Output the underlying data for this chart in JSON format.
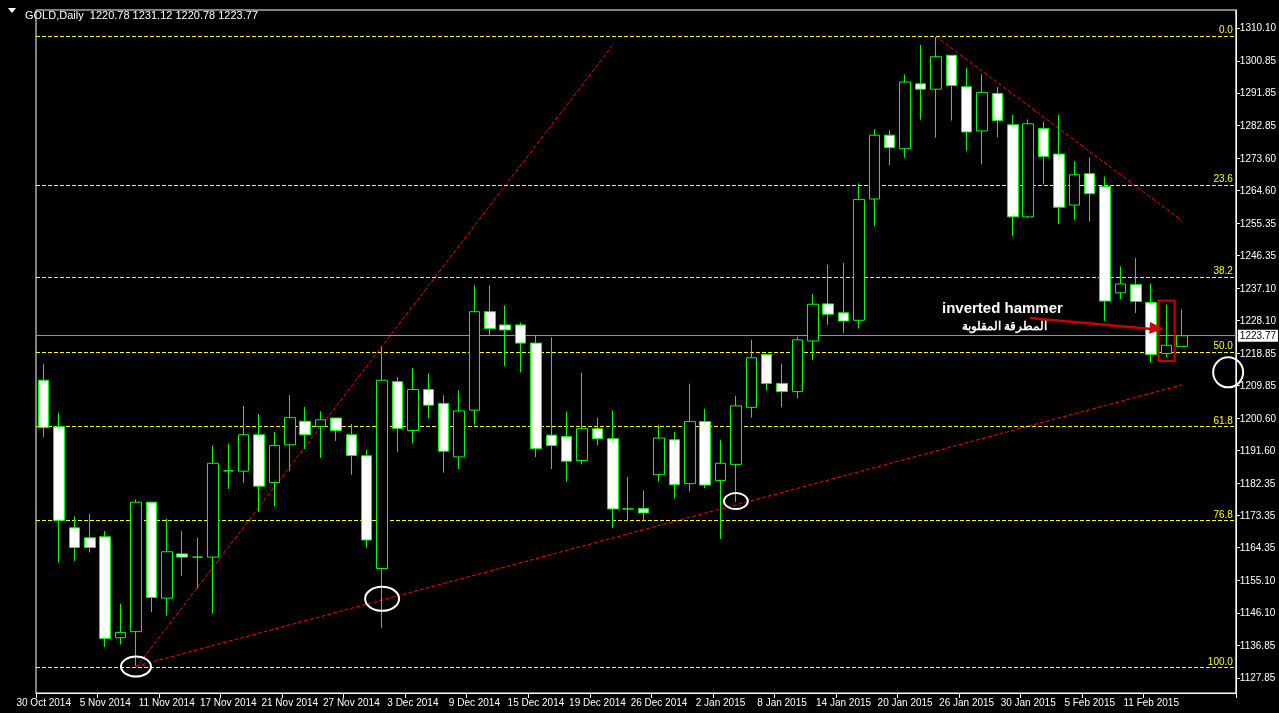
{
  "chart_data": {
    "type": "candlestick",
    "title": "GOLD,Daily  1220.78 1231.12 1220.78 1223.77",
    "categories": [
      "30 Oct 2014",
      null,
      null,
      null,
      "5 Nov 2014",
      null,
      null,
      null,
      "11 Nov 2014",
      null,
      null,
      null,
      "17 Nov 2014",
      null,
      null,
      null,
      "21 Nov 2014",
      null,
      null,
      null,
      "27 Nov 2014",
      null,
      null,
      null,
      "3 Dec 2014",
      null,
      null,
      null,
      "9 Dec 2014",
      null,
      null,
      null,
      "15 Dec 2014",
      null,
      null,
      null,
      "19 Dec 2014",
      null,
      null,
      null,
      "26 Dec 2014",
      null,
      null,
      null,
      "2 Jan 2015",
      null,
      null,
      null,
      "8 Jan 2015",
      null,
      null,
      null,
      "14 Jan 2015",
      null,
      null,
      null,
      "20 Jan 2015",
      null,
      null,
      null,
      "26 Jan 2015",
      null,
      null,
      null,
      "30 Jan 2015",
      null,
      null,
      null,
      "5 Feb 2015",
      null,
      null,
      null,
      "11 Feb 2015",
      null,
      null
    ],
    "series": [
      {
        "type": "candlestick",
        "color": "#00ff00",
        "ohlc": [
          [
            1211.3,
            1215.9,
            1195.3,
            1198.0
          ],
          [
            1198.3,
            1202.2,
            1160.2,
            1172.0
          ],
          [
            1169.9,
            1173.1,
            1160.6,
            1164.4
          ],
          [
            1167.1,
            1173.9,
            1163.0,
            1164.4
          ],
          [
            1167.4,
            1169.0,
            1136.5,
            1138.9
          ],
          [
            1139.1,
            1148.6,
            1137.2,
            1140.6
          ],
          [
            1140.8,
            1177.9,
            1131.2,
            1177.1
          ],
          [
            1177.1,
            1177.1,
            1146.3,
            1150.4
          ],
          [
            1150.2,
            1172.4,
            1145.3,
            1163.2
          ],
          [
            1162.6,
            1169.0,
            1156.4,
            1161.7
          ],
          [
            1161.7,
            1167.1,
            1152.9,
            1161.7
          ],
          [
            1161.7,
            1193.0,
            1145.9,
            1188.0
          ],
          [
            1185.9,
            1193.5,
            1180.8,
            1185.9
          ],
          [
            1185.8,
            1204.1,
            1182.5,
            1196.0
          ],
          [
            1196.0,
            1201.8,
            1174.3,
            1181.6
          ],
          [
            1182.6,
            1196.8,
            1176.0,
            1193.0
          ],
          [
            1193.2,
            1207.1,
            1185.8,
            1200.8
          ],
          [
            1199.8,
            1203.8,
            1192.0,
            1196.0
          ],
          [
            1198.3,
            1202.6,
            1189.5,
            1200.2
          ],
          [
            1200.7,
            1200.7,
            1194.3,
            1197.2
          ],
          [
            1196.0,
            1199.0,
            1184.8,
            1190.2
          ],
          [
            1190.1,
            1191.7,
            1164.4,
            1166.5
          ],
          [
            1158.5,
            1220.7,
            1141.9,
            1211.3
          ],
          [
            1210.9,
            1212.2,
            1191.2,
            1197.8
          ],
          [
            1197.2,
            1214.7,
            1193.6,
            1208.7
          ],
          [
            1208.7,
            1213.2,
            1200.6,
            1204.3
          ],
          [
            1204.8,
            1207.1,
            1185.4,
            1191.4
          ],
          [
            1189.8,
            1208.5,
            1186.4,
            1202.7
          ],
          [
            1202.9,
            1237.9,
            1198.8,
            1230.5
          ],
          [
            1230.5,
            1237.9,
            1223.9,
            1225.8
          ],
          [
            1226.8,
            1232.3,
            1215.3,
            1225.4
          ],
          [
            1226.8,
            1227.5,
            1213.5,
            1221.7
          ],
          [
            1221.7,
            1223.9,
            1189.8,
            1192.1
          ],
          [
            1195.9,
            1223.3,
            1186.4,
            1193.0
          ],
          [
            1195.5,
            1202.5,
            1182.9,
            1188.6
          ],
          [
            1188.8,
            1213.4,
            1187.7,
            1197.7
          ],
          [
            1197.7,
            1200.8,
            1193.0,
            1194.9
          ],
          [
            1194.9,
            1202.8,
            1169.9,
            1175.2
          ],
          [
            1175.2,
            1184.2,
            1171.9,
            1175.2
          ],
          [
            1175.3,
            1180.4,
            1171.9,
            1174.1
          ],
          [
            1184.8,
            1198.7,
            1182.9,
            1195.1
          ],
          [
            1194.6,
            1196.8,
            1178.2,
            1182.0
          ],
          [
            1182.3,
            1210.3,
            1180.1,
            1199.7
          ],
          [
            1199.7,
            1203.3,
            1181.0,
            1181.9
          ],
          [
            1183.2,
            1194.5,
            1166.8,
            1188.0
          ],
          [
            1187.7,
            1206.9,
            1177.2,
            1204.1
          ],
          [
            1203.7,
            1222.6,
            1200.8,
            1217.6
          ],
          [
            1218.5,
            1218.5,
            1208.4,
            1210.4
          ],
          [
            1210.4,
            1215.9,
            1203.7,
            1208.1
          ],
          [
            1208.1,
            1223.5,
            1206.2,
            1222.6
          ],
          [
            1222.3,
            1235.4,
            1217.0,
            1232.6
          ],
          [
            1232.7,
            1243.7,
            1226.8,
            1229.8
          ],
          [
            1230.2,
            1244.2,
            1224.5,
            1227.9
          ],
          [
            1228.1,
            1266.4,
            1225.8,
            1262.0
          ],
          [
            1262.1,
            1281.7,
            1254.5,
            1280.0
          ],
          [
            1280.0,
            1281.3,
            1271.6,
            1276.5
          ],
          [
            1276.2,
            1297.0,
            1273.7,
            1294.9
          ],
          [
            1294.4,
            1305.3,
            1284.3,
            1292.9
          ],
          [
            1292.9,
            1307.5,
            1279.3,
            1302.0
          ],
          [
            1302.4,
            1302.4,
            1284.1,
            1293.9
          ],
          [
            1293.6,
            1298.9,
            1275.6,
            1280.9
          ],
          [
            1281.2,
            1297.1,
            1271.8,
            1292.0
          ],
          [
            1291.7,
            1293.5,
            1279.4,
            1284.1
          ],
          [
            1282.9,
            1285.7,
            1251.6,
            1257.1
          ],
          [
            1257.1,
            1284.4,
            1256.7,
            1283.2
          ],
          [
            1281.9,
            1283.8,
            1266.2,
            1274.0
          ],
          [
            1274.7,
            1285.7,
            1255.1,
            1259.8
          ],
          [
            1260.4,
            1272.7,
            1256.3,
            1268.9
          ],
          [
            1269.2,
            1273.7,
            1255.8,
            1263.6
          ],
          [
            1265.6,
            1268.4,
            1227.9,
            1233.5
          ],
          [
            1235.8,
            1243.2,
            1234.0,
            1238.3
          ],
          [
            1238.1,
            1245.5,
            1230.2,
            1233.4
          ],
          [
            1233.1,
            1238.4,
            1216.3,
            1218.5
          ],
          [
            1218.8,
            1232.5,
            1217.8,
            1221.1
          ],
          [
            1220.78,
            1231.12,
            1220.78,
            1223.77
          ]
        ]
      },
      {
        "type": "line",
        "color": "#ff0000",
        "line_style": "dashed",
        "values": [
          null,
          null,
          null,
          null,
          null,
          null,
          1130.7,
          null,
          null,
          null,
          null,
          null,
          null,
          null,
          null,
          null,
          null,
          null,
          null,
          null,
          null,
          null,
          null,
          null,
          null,
          null,
          null,
          null,
          null,
          null,
          null,
          null,
          null,
          null,
          null,
          null,
          null,
          1305.3,
          null,
          null,
          null,
          null,
          null,
          null,
          null,
          null,
          null,
          null,
          null,
          null,
          null,
          null,
          null,
          null,
          null,
          null,
          null,
          null,
          null,
          null,
          null,
          null,
          null,
          null,
          null,
          null,
          null,
          null,
          null,
          null,
          null,
          null,
          null,
          null,
          null
        ]
      },
      {
        "type": "line",
        "color": "#ff0000",
        "line_style": "dashed",
        "values": [
          null,
          null,
          null,
          null,
          null,
          null,
          1131.1,
          null,
          null,
          null,
          null,
          null,
          null,
          null,
          null,
          null,
          null,
          null,
          null,
          null,
          null,
          null,
          null,
          null,
          null,
          null,
          null,
          null,
          null,
          null,
          null,
          null,
          null,
          null,
          null,
          null,
          null,
          null,
          null,
          null,
          null,
          null,
          null,
          null,
          null,
          null,
          null,
          null,
          null,
          null,
          null,
          null,
          null,
          null,
          null,
          null,
          null,
          null,
          null,
          null,
          null,
          null,
          null,
          null,
          null,
          null,
          null,
          null,
          null,
          null,
          null,
          null,
          null,
          null,
          1210.0
        ]
      },
      {
        "type": "line",
        "color": "#ff0000",
        "line_style": "dashed",
        "values": [
          null,
          null,
          null,
          null,
          null,
          null,
          null,
          null,
          null,
          null,
          null,
          null,
          null,
          null,
          null,
          null,
          null,
          null,
          null,
          null,
          null,
          null,
          null,
          null,
          null,
          null,
          null,
          null,
          null,
          null,
          null,
          null,
          null,
          null,
          null,
          null,
          null,
          null,
          null,
          null,
          null,
          null,
          null,
          null,
          null,
          null,
          null,
          null,
          null,
          null,
          null,
          null,
          null,
          null,
          null,
          null,
          null,
          null,
          1307.7,
          null,
          null,
          null,
          null,
          null,
          null,
          null,
          null,
          null,
          null,
          null,
          null,
          null,
          null,
          null,
          1256.0
        ]
      }
    ],
    "ylim": [
      1123.6,
      1315.1
    ],
    "yticks": [
      {
        "value": 1310.1,
        "label": "1310.10"
      },
      1300.85,
      1291.85,
      1282.85,
      {
        "value": 1273.6,
        "label": "1273.60"
      },
      {
        "value": 1264.6,
        "label": "1264.60"
      },
      1255.35,
      1246.35,
      {
        "value": 1237.1,
        "label": "1237.10"
      },
      {
        "value": 1228.1,
        "label": "1228.10"
      },
      1218.85,
      1209.85,
      {
        "value": 1200.6,
        "label": "1200.60"
      },
      {
        "value": 1191.6,
        "label": "1191.60"
      },
      1182.35,
      1173.35,
      1164.35,
      {
        "value": 1155.1,
        "label": "1155.10"
      },
      {
        "value": 1146.1,
        "label": "1146.10"
      },
      1136.85,
      1127.85
    ],
    "ref_lines": [
      {
        "axis": "y",
        "value": 1307.7,
        "color": "#ffff00",
        "line_style": "dashed"
      },
      {
        "axis": "y",
        "value": 1265.9,
        "color": "#ffff00",
        "line_style": "dashed"
      },
      {
        "axis": "y",
        "value": 1240.1,
        "color": "#ffff00",
        "line_style": "dashed"
      },
      {
        "axis": "y",
        "value": 1219.2,
        "color": "#ffff00",
        "line_style": "dashed"
      },
      {
        "axis": "y",
        "value": 1198.3,
        "color": "#ffff00",
        "line_style": "dashed"
      },
      {
        "axis": "y",
        "value": 1171.9,
        "color": "#ffff00",
        "line_style": "dashed"
      },
      {
        "axis": "y",
        "value": 1130.7,
        "color": "#ffff00",
        "line_style": "dashed"
      },
      {
        "axis": "y",
        "value": 1223.77,
        "label": "1223.77",
        "color": "#8c96a8",
        "line_style": "solid"
      }
    ],
    "annotations": [
      "inverted hammer",
      "المطرقة المقلوبة",
      {
        "text": "0.0",
        "y": 1307.7
      },
      {
        "text": "23.6",
        "y": 1265.9
      },
      {
        "text": "38.2",
        "y": 1240.1
      },
      {
        "text": "50.0",
        "y": 1219.2
      },
      {
        "text": "61.8",
        "y": 1198.3
      },
      {
        "text": "76.8",
        "y": 1171.9
      },
      {
        "text": "100.0",
        "y": 1130.7
      }
    ],
    "grid": false
  }
}
